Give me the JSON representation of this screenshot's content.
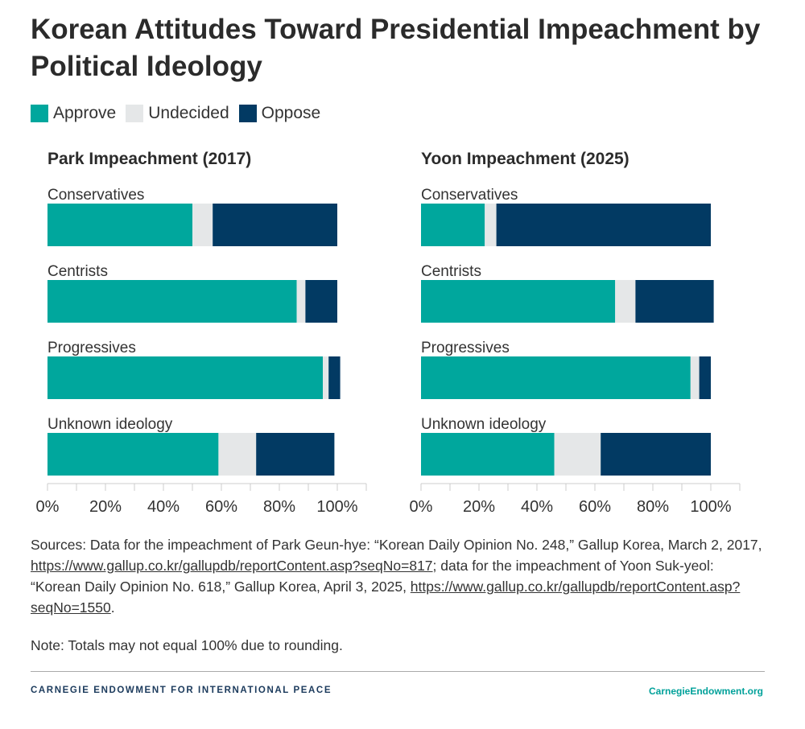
{
  "title": "Korean Attitudes Toward Presidential Impeachment by Political Ideology",
  "legend": [
    {
      "label": "Approve",
      "color": "#00a79d"
    },
    {
      "label": "Undecided",
      "color": "#e5e7e8"
    },
    {
      "label": "Oppose",
      "color": "#023a63"
    }
  ],
  "chart_data": [
    {
      "type": "bar",
      "orientation": "horizontal",
      "stacked": true,
      "title": "Park Impeachment (2017)",
      "categories": [
        "Conservatives",
        "Centrists",
        "Progressives",
        "Unknown ideology"
      ],
      "series": [
        {
          "name": "Approve",
          "values": [
            50,
            86,
            95,
            59
          ]
        },
        {
          "name": "Undecided",
          "values": [
            7,
            3,
            2,
            13
          ]
        },
        {
          "name": "Oppose",
          "values": [
            43,
            11,
            4,
            27
          ]
        }
      ],
      "xlim": [
        0,
        110
      ],
      "xticks": [
        0,
        20,
        40,
        60,
        80,
        100
      ],
      "xtick_labels": [
        "0%",
        "20%",
        "40%",
        "60%",
        "80%",
        "100%"
      ]
    },
    {
      "type": "bar",
      "orientation": "horizontal",
      "stacked": true,
      "title": "Yoon Impeachment (2025)",
      "categories": [
        "Conservatives",
        "Centrists",
        "Progressives",
        "Unknown ideology"
      ],
      "series": [
        {
          "name": "Approve",
          "values": [
            22,
            67,
            93,
            46
          ]
        },
        {
          "name": "Undecided",
          "values": [
            4,
            7,
            3,
            16
          ]
        },
        {
          "name": "Oppose",
          "values": [
            74,
            27,
            4,
            38
          ]
        }
      ],
      "xlim": [
        0,
        110
      ],
      "xticks": [
        0,
        20,
        40,
        60,
        80,
        100
      ],
      "xtick_labels": [
        "0%",
        "20%",
        "40%",
        "60%",
        "80%",
        "100%"
      ]
    }
  ],
  "sources": {
    "prefix": "Sources: Data for the impeachment of Park Geun-hye: “Korean Daily Opinion No. 248,” Gallup Korea, March 2, 2017, ",
    "url1": "https://www.gallup.co.kr/gallupdb/reportContent.asp?seqNo=817",
    "middle": "; data for the impeachment of Yoon Suk-yeol: “Korean Daily Opinion No. 618,” Gallup Korea, April 3, 2025, ",
    "url2": "https://www.gallup.co.kr/gallupdb/reportContent.asp?seqNo=1550",
    "suffix": "."
  },
  "note": "Note: Totals may not equal 100% due to rounding.",
  "footer": {
    "org": "CARNEGIE ENDOWMENT FOR INTERNATIONAL PEACE",
    "site": "CarnegieEndowment.org"
  }
}
